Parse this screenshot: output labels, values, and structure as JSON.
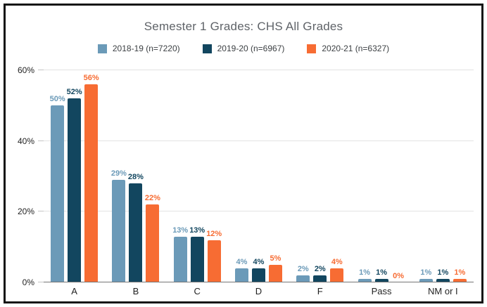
{
  "chart": {
    "title": "Semester 1 Grades: CHS All Grades"
  },
  "chart_data": {
    "type": "bar",
    "title": "Semester 1 Grades: CHS All Grades",
    "categories": [
      "A",
      "B",
      "C",
      "D",
      "F",
      "Pass",
      "NM or I"
    ],
    "series": [
      {
        "name": "2018-19 (n=7220)",
        "color": "#6b9ab8",
        "values": [
          50,
          29,
          13,
          4,
          2,
          1,
          1
        ],
        "labels": [
          "50%",
          "29%",
          "13%",
          "4%",
          "2%",
          "1%",
          "1%"
        ]
      },
      {
        "name": "2019-20 (n=6967)",
        "color": "#12465f",
        "values": [
          52,
          28,
          13,
          4,
          2,
          1,
          1
        ],
        "labels": [
          "52%",
          "28%",
          "13%",
          "4%",
          "2%",
          "1%",
          "1%"
        ]
      },
      {
        "name": "2020-21 (n=6327)",
        "color": "#f76c33",
        "values": [
          56,
          22,
          12,
          5,
          4,
          0,
          1
        ],
        "labels": [
          "56%",
          "22%",
          "12%",
          "5%",
          "4%",
          "0%",
          "1%"
        ]
      }
    ],
    "xlabel": "",
    "ylabel": "",
    "ylim": [
      0,
      60
    ],
    "yticks": [
      {
        "value": 0,
        "label": "0%"
      },
      {
        "value": 20,
        "label": "20%"
      },
      {
        "value": 40,
        "label": "40%"
      },
      {
        "value": 60,
        "label": "60%"
      }
    ],
    "grid": true,
    "legend_position": "top",
    "colors": {
      "gridline": "#e2e2e2",
      "baseline": "#757575",
      "title_text": "#5f6368",
      "axis_text": "#1f1f1f",
      "frame_border": "#141414"
    }
  }
}
